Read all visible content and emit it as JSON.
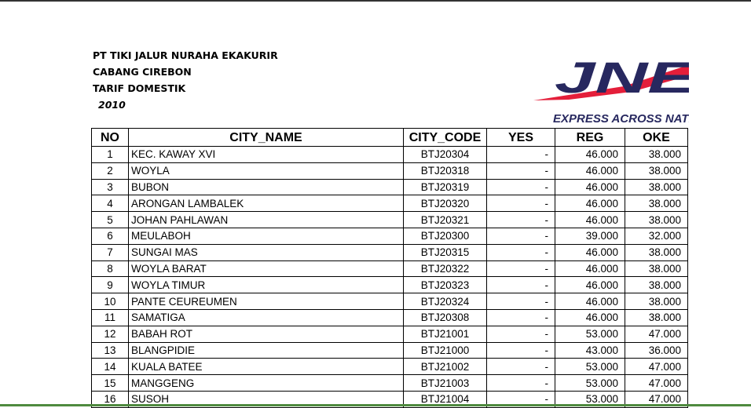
{
  "header": {
    "company": "PT TIKI JALUR NURAHA EKAKURIR",
    "branch": "CABANG CIREBON",
    "title": "TARIF DOMESTIK",
    "year": "2010"
  },
  "logo": {
    "text": "JNE",
    "tagline": "EXPRESS ACROSS NATI",
    "colors": {
      "navy": "#27285f",
      "red": "#e41e3a"
    }
  },
  "table": {
    "columns": [
      "NO",
      "CITY_NAME",
      "CITY_CODE",
      "YES",
      "REG",
      "OKE"
    ],
    "rows": [
      [
        "1",
        "KEC. KAWAY XVI",
        "BTJ20304",
        "-",
        "46.000",
        "38.000"
      ],
      [
        "2",
        "WOYLA",
        "BTJ20318",
        "-",
        "46.000",
        "38.000"
      ],
      [
        "3",
        "BUBON",
        "BTJ20319",
        "-",
        "46.000",
        "38.000"
      ],
      [
        "4",
        "ARONGAN LAMBALEK",
        "BTJ20320",
        "-",
        "46.000",
        "38.000"
      ],
      [
        "5",
        "JOHAN PAHLAWAN",
        "BTJ20321",
        "-",
        "46.000",
        "38.000"
      ],
      [
        "6",
        "MEULABOH",
        "BTJ20300",
        "-",
        "39.000",
        "32.000"
      ],
      [
        "7",
        "SUNGAI MAS",
        "BTJ20315",
        "-",
        "46.000",
        "38.000"
      ],
      [
        "8",
        "WOYLA BARAT",
        "BTJ20322",
        "-",
        "46.000",
        "38.000"
      ],
      [
        "9",
        "WOYLA TIMUR",
        "BTJ20323",
        "-",
        "46.000",
        "38.000"
      ],
      [
        "10",
        "PANTE CEUREUMEN",
        "BTJ20324",
        "-",
        "46.000",
        "38.000"
      ],
      [
        "11",
        "SAMATIGA",
        "BTJ20308",
        "-",
        "46.000",
        "38.000"
      ],
      [
        "12",
        "BABAH ROT",
        "BTJ21001",
        "-",
        "53.000",
        "47.000"
      ],
      [
        "13",
        "BLANGPIDIE",
        "BTJ21000",
        "-",
        "43.000",
        "36.000"
      ],
      [
        "14",
        "KUALA BATEE",
        "BTJ21002",
        "-",
        "53.000",
        "47.000"
      ],
      [
        "15",
        "MANGGENG",
        "BTJ21003",
        "-",
        "53.000",
        "47.000"
      ],
      [
        "16",
        "SUSOH",
        "BTJ21004",
        "-",
        "53.000",
        "47.000"
      ]
    ]
  }
}
